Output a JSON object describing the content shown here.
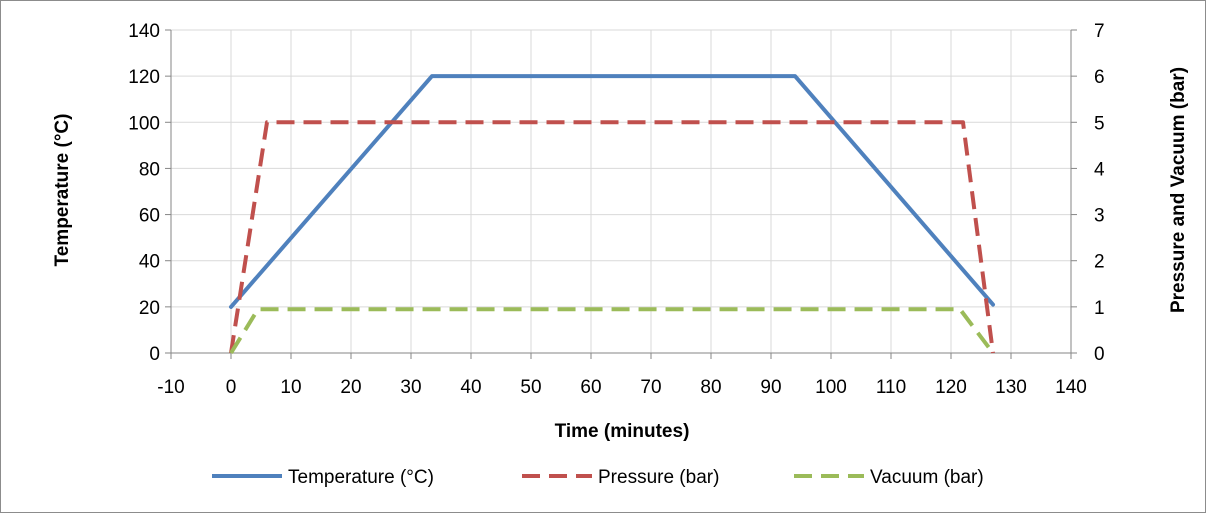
{
  "chart_data": {
    "type": "line",
    "xlabel": "Time (minutes)",
    "ylabel": "Temperature (°C)",
    "y2label": "Pressure and Vacuum (bar)",
    "xlim": [
      -10,
      140
    ],
    "ylim": [
      0,
      140
    ],
    "y2lim": [
      0,
      7
    ],
    "x_ticks": [
      -10,
      0,
      10,
      20,
      30,
      40,
      50,
      60,
      70,
      80,
      90,
      100,
      110,
      120,
      130,
      140
    ],
    "y_ticks": [
      0,
      20,
      40,
      60,
      80,
      100,
      120,
      140
    ],
    "y2_ticks": [
      0,
      1,
      2,
      3,
      4,
      5,
      6,
      7
    ],
    "grid": "on",
    "legend_position": "bottom",
    "series": [
      {
        "name": "Temperature (°C)",
        "axis": "left",
        "color": "#4f81bd",
        "style": "solid",
        "points": [
          [
            0,
            20
          ],
          [
            33.5,
            120
          ],
          [
            94,
            120
          ],
          [
            127,
            21
          ]
        ]
      },
      {
        "name": "Pressure (bar)",
        "axis": "right",
        "color": "#c0504d",
        "style": "dashed",
        "points": [
          [
            0,
            0
          ],
          [
            6,
            5
          ],
          [
            122,
            5
          ],
          [
            127,
            0
          ]
        ]
      },
      {
        "name": "Vacuum (bar)",
        "axis": "right",
        "color": "#9bbb59",
        "style": "dashed",
        "points": [
          [
            0,
            0
          ],
          [
            4.5,
            0.95
          ],
          [
            121.5,
            0.95
          ],
          [
            127,
            0
          ]
        ]
      }
    ]
  }
}
